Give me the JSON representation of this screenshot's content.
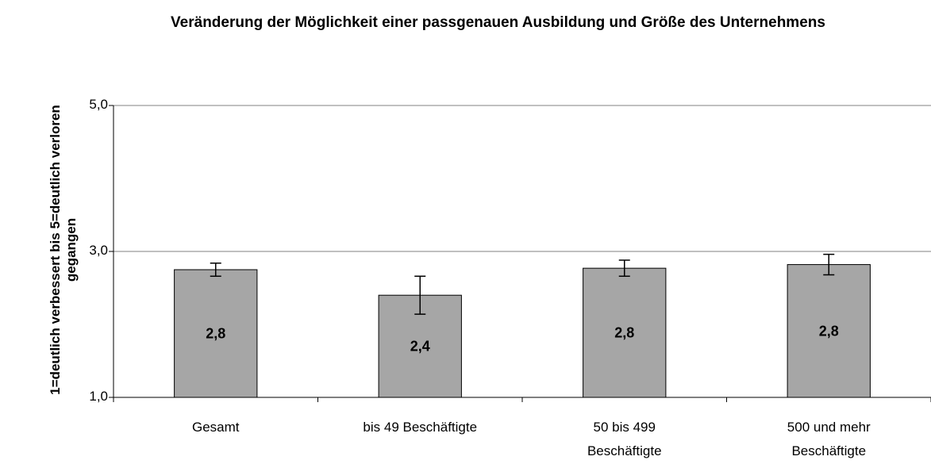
{
  "chart_data": {
    "type": "bar",
    "title": "Veränderung der Möglichkeit einer passgenauen Ausbildung und  Größe des Unternehmens",
    "y_label": "1=deutlich verbessert bis 5=deutlich verloren\ngegangen",
    "categories": [
      "Gesamt",
      "bis 49 Beschäftigte",
      "50 bis 499\nBeschäftigte",
      "500 und mehr\nBeschäftigte"
    ],
    "values": [
      2.75,
      2.4,
      2.77,
      2.82
    ],
    "value_labels": [
      "2,8",
      "2,4",
      "2,8",
      "2,8"
    ],
    "errors": [
      0.09,
      0.26,
      0.11,
      0.14
    ],
    "color": "#a6a6a6",
    "ylim": [
      1,
      5
    ],
    "yticks": [
      {
        "value": 1,
        "label": "1,0"
      },
      {
        "value": 3,
        "label": "3,0"
      },
      {
        "value": 5,
        "label": "5,0"
      }
    ],
    "grid": true
  }
}
